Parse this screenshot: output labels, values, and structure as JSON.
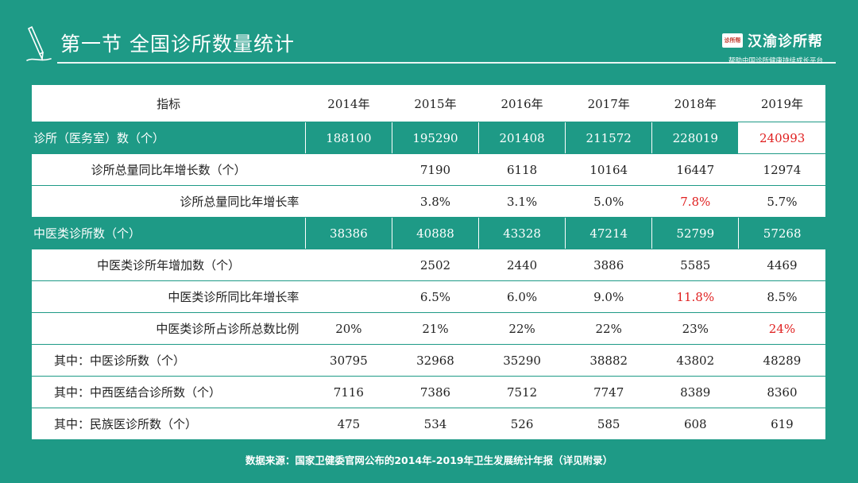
{
  "header": {
    "title": "第一节  全国诊所数量统计",
    "logo_badge": "诊所帮",
    "logo_name": "汉渝诊所帮",
    "logo_slogan": "帮助中国诊所健康持续成长平台"
  },
  "table": {
    "columns": [
      "指标",
      "2014年",
      "2015年",
      "2016年",
      "2017年",
      "2018年",
      "2019年"
    ],
    "rows": [
      {
        "label": "诊所（医务室）数（个）",
        "values": [
          "188100",
          "195290",
          "201408",
          "211572",
          "228019",
          "240993"
        ]
      },
      {
        "label": "诊所总量同比年增长数（个）",
        "values": [
          "",
          "7190",
          "6118",
          "10164",
          "16447",
          "12974"
        ]
      },
      {
        "label": "诊所总量同比年增长率",
        "values": [
          "",
          "3.8%",
          "3.1%",
          "5.0%",
          "7.8%",
          "5.7%"
        ]
      },
      {
        "label": "中医类诊所数（个）",
        "values": [
          "38386",
          "40888",
          "43328",
          "47214",
          "52799",
          "57268"
        ]
      },
      {
        "label": "中医类诊所年增加数（个）",
        "values": [
          "",
          "2502",
          "2440",
          "3886",
          "5585",
          "4469"
        ]
      },
      {
        "label": "中医类诊所同比年增长率",
        "values": [
          "",
          "6.5%",
          "6.0%",
          "9.0%",
          "11.8%",
          "8.5%"
        ]
      },
      {
        "label": "中医类诊所占诊所总数比例",
        "values": [
          "20%",
          "21%",
          "22%",
          "22%",
          "23%",
          "24%"
        ]
      },
      {
        "label": "其中：中医诊所数（个）",
        "values": [
          "30795",
          "32968",
          "35290",
          "38882",
          "43802",
          "48289"
        ]
      },
      {
        "label": "其中：中西医结合诊所数（个）",
        "values": [
          "7116",
          "7386",
          "7512",
          "7747",
          "8389",
          "8360"
        ]
      },
      {
        "label": "其中：民族医诊所数（个）",
        "values": [
          "475",
          "534",
          "526",
          "585",
          "608",
          "619"
        ]
      }
    ]
  },
  "colors": {
    "background": "#1e9a86",
    "highlight": "#e02020"
  },
  "footer": {
    "source": "数据来源：国家卫健委官网公布的2014年-2019年卫生发展统计年报（详见附录）"
  }
}
